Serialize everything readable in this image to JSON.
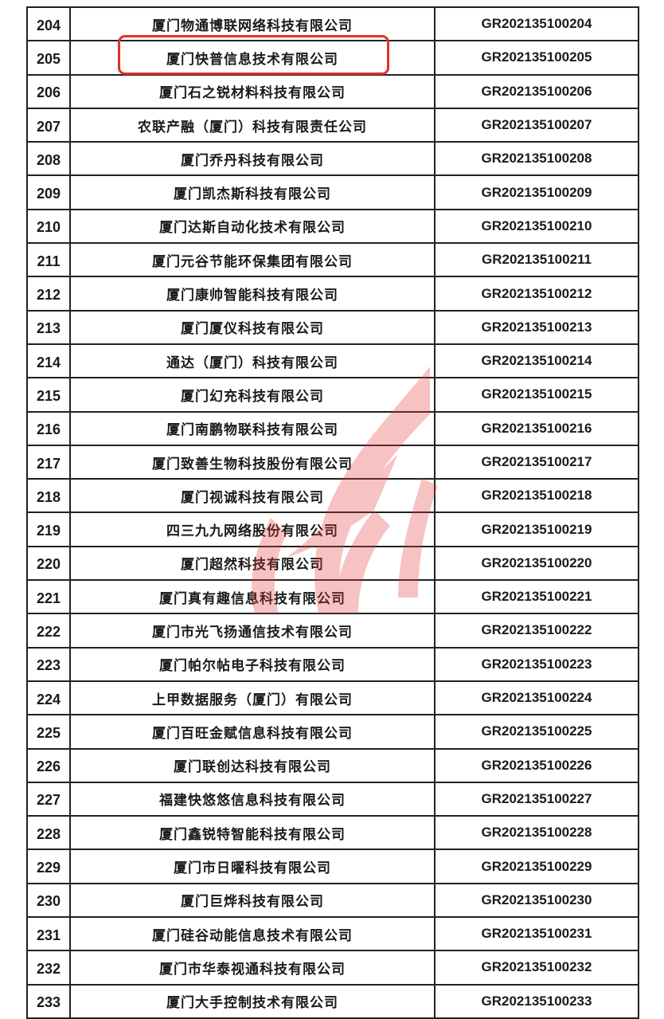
{
  "document": {
    "highlighted_row": "205",
    "highlight_color": "#e0302a",
    "watermark_color": "#e8393a",
    "watermark_icon": "flame-logo-icon",
    "rows": [
      {
        "no": "204",
        "name": "厦门物通博联网络科技有限公司",
        "code": "GR202135100204"
      },
      {
        "no": "205",
        "name": "厦门快普信息技术有限公司",
        "code": "GR202135100205"
      },
      {
        "no": "206",
        "name": "厦门石之锐材料科技有限公司",
        "code": "GR202135100206"
      },
      {
        "no": "207",
        "name": "农联产融（厦门）科技有限责任公司",
        "code": "GR202135100207"
      },
      {
        "no": "208",
        "name": "厦门乔丹科技有限公司",
        "code": "GR202135100208"
      },
      {
        "no": "209",
        "name": "厦门凯杰斯科技有限公司",
        "code": "GR202135100209"
      },
      {
        "no": "210",
        "name": "厦门达斯自动化技术有限公司",
        "code": "GR202135100210"
      },
      {
        "no": "211",
        "name": "厦门元谷节能环保集团有限公司",
        "code": "GR202135100211"
      },
      {
        "no": "212",
        "name": "厦门康帅智能科技有限公司",
        "code": "GR202135100212"
      },
      {
        "no": "213",
        "name": "厦门厦仪科技有限公司",
        "code": "GR202135100213"
      },
      {
        "no": "214",
        "name": "通达（厦门）科技有限公司",
        "code": "GR202135100214"
      },
      {
        "no": "215",
        "name": "厦门幻充科技有限公司",
        "code": "GR202135100215"
      },
      {
        "no": "216",
        "name": "厦门南鹏物联科技有限公司",
        "code": "GR202135100216"
      },
      {
        "no": "217",
        "name": "厦门致善生物科技股份有限公司",
        "code": "GR202135100217"
      },
      {
        "no": "218",
        "name": "厦门视诚科技有限公司",
        "code": "GR202135100218"
      },
      {
        "no": "219",
        "name": "四三九九网络股份有限公司",
        "code": "GR202135100219"
      },
      {
        "no": "220",
        "name": "厦门超然科技有限公司",
        "code": "GR202135100220"
      },
      {
        "no": "221",
        "name": "厦门真有趣信息科技有限公司",
        "code": "GR202135100221"
      },
      {
        "no": "222",
        "name": "厦门市光飞扬通信技术有限公司",
        "code": "GR202135100222"
      },
      {
        "no": "223",
        "name": "厦门帕尔帖电子科技有限公司",
        "code": "GR202135100223"
      },
      {
        "no": "224",
        "name": "上甲数据服务（厦门）有限公司",
        "code": "GR202135100224"
      },
      {
        "no": "225",
        "name": "厦门百旺金赋信息科技有限公司",
        "code": "GR202135100225"
      },
      {
        "no": "226",
        "name": "厦门联创达科技有限公司",
        "code": "GR202135100226"
      },
      {
        "no": "227",
        "name": "福建快悠悠信息科技有限公司",
        "code": "GR202135100227"
      },
      {
        "no": "228",
        "name": "厦门鑫锐特智能科技有限公司",
        "code": "GR202135100228"
      },
      {
        "no": "229",
        "name": "厦门市日曜科技有限公司",
        "code": "GR202135100229"
      },
      {
        "no": "230",
        "name": "厦门巨烨科技有限公司",
        "code": "GR202135100230"
      },
      {
        "no": "231",
        "name": "厦门硅谷动能信息技术有限公司",
        "code": "GR202135100231"
      },
      {
        "no": "232",
        "name": "厦门市华泰视通科技有限公司",
        "code": "GR202135100232"
      },
      {
        "no": "233",
        "name": "厦门大手控制技术有限公司",
        "code": "GR202135100233"
      }
    ]
  }
}
